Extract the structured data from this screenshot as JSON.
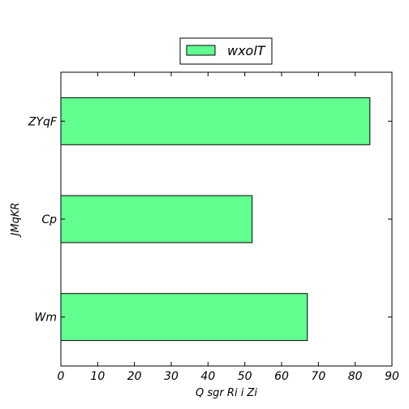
{
  "chart_data": {
    "type": "bar",
    "orientation": "horizontal",
    "categories": [
      "ZYqF",
      "Cp",
      "Wm"
    ],
    "series": [
      {
        "name": "wxolT",
        "values": [
          84,
          52,
          67
        ]
      }
    ],
    "title": "",
    "xlabel": "Q sgr Ri i Zi",
    "ylabel": "JMqKR",
    "xlim": [
      0,
      90
    ],
    "xticks": [
      0,
      10,
      20,
      30,
      40,
      50,
      60,
      70,
      80,
      90
    ],
    "grid": false,
    "legend_position": "top-center",
    "colors": {
      "bar_fill": "#62ff91",
      "bar_edge": "#000000"
    }
  }
}
